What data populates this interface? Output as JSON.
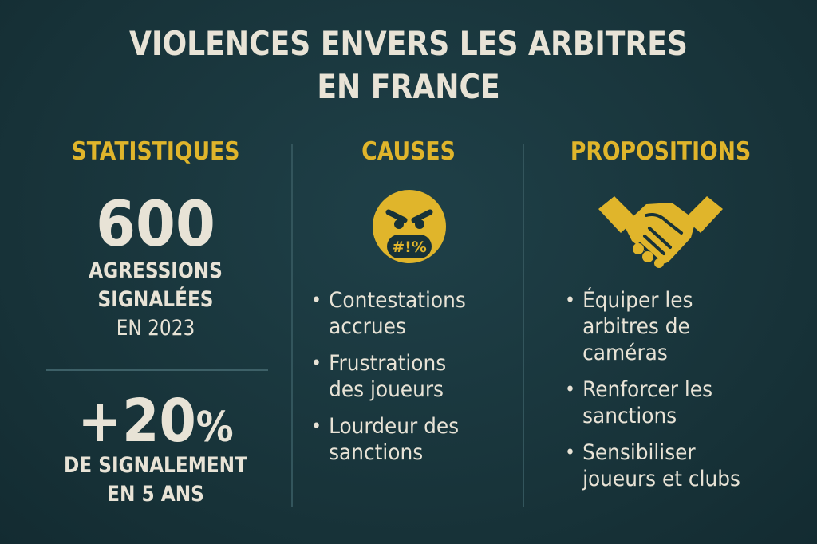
{
  "title": {
    "line1": "VIOLENCES ENVERS LES ARBITRES",
    "line2": "EN FRANCE"
  },
  "columns": {
    "statistics": {
      "heading": "STATISTIQUES",
      "stat1": {
        "value": "600",
        "caption_line1": "AGRESSIONS",
        "caption_line2": "SIGNALÉES",
        "caption_line3": "EN 2023"
      },
      "stat2": {
        "value": "+20",
        "unit": "%",
        "caption_line1": "DE SIGNALEMENT",
        "caption_line2": "EN 5 ANS"
      }
    },
    "causes": {
      "heading": "CAUSES",
      "icon": "angry-face-icon",
      "icon_text": "#!%",
      "items": [
        {
          "line1": "Contestations",
          "line2": "accrues"
        },
        {
          "line1": "Frustrations",
          "line2": "des joueurs"
        },
        {
          "line1": "Lourdeur des",
          "line2": "sanctions"
        }
      ]
    },
    "propositions": {
      "heading": "PROPOSITIONS",
      "icon": "handshake-icon",
      "items": [
        {
          "line1": "Équiper les",
          "line2": "arbitres de",
          "line3": "caméras"
        },
        {
          "line1": "Renforcer les",
          "line2": "sanctions"
        },
        {
          "line1": "Sensibiliser",
          "line2": "joueurs et clubs"
        }
      ]
    }
  },
  "colors": {
    "background": "#173238",
    "accent": "#e0b52b",
    "text": "#e8e3d6",
    "divider": "#33555c"
  }
}
